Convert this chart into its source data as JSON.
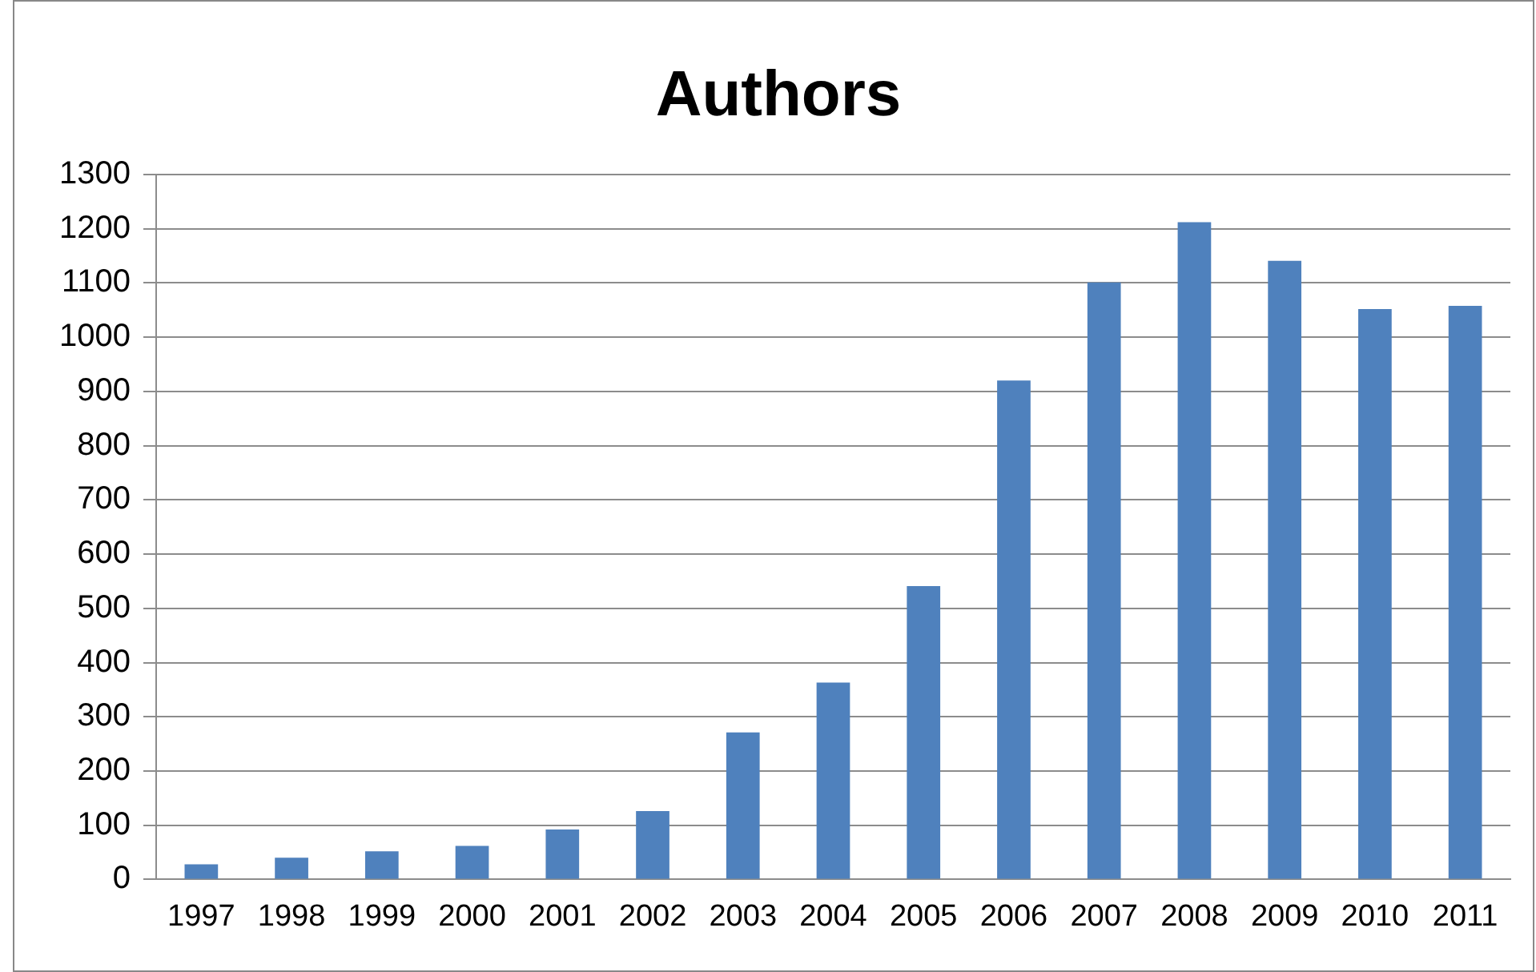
{
  "chart_data": {
    "type": "bar",
    "title": "Authors",
    "categories": [
      "1997",
      "1998",
      "1999",
      "2000",
      "2001",
      "2002",
      "2003",
      "2004",
      "2005",
      "2006",
      "2007",
      "2008",
      "2009",
      "2010",
      "2011"
    ],
    "values": [
      28,
      40,
      52,
      62,
      92,
      126,
      271,
      363,
      541,
      920,
      1101,
      1212,
      1141,
      1052,
      1058
    ],
    "color": "#4f81bd",
    "ylim": [
      0,
      1300
    ],
    "yticks": [
      0,
      100,
      200,
      300,
      400,
      500,
      600,
      700,
      800,
      900,
      1000,
      1100,
      1200,
      1300
    ],
    "grid": "y",
    "legend": false
  }
}
